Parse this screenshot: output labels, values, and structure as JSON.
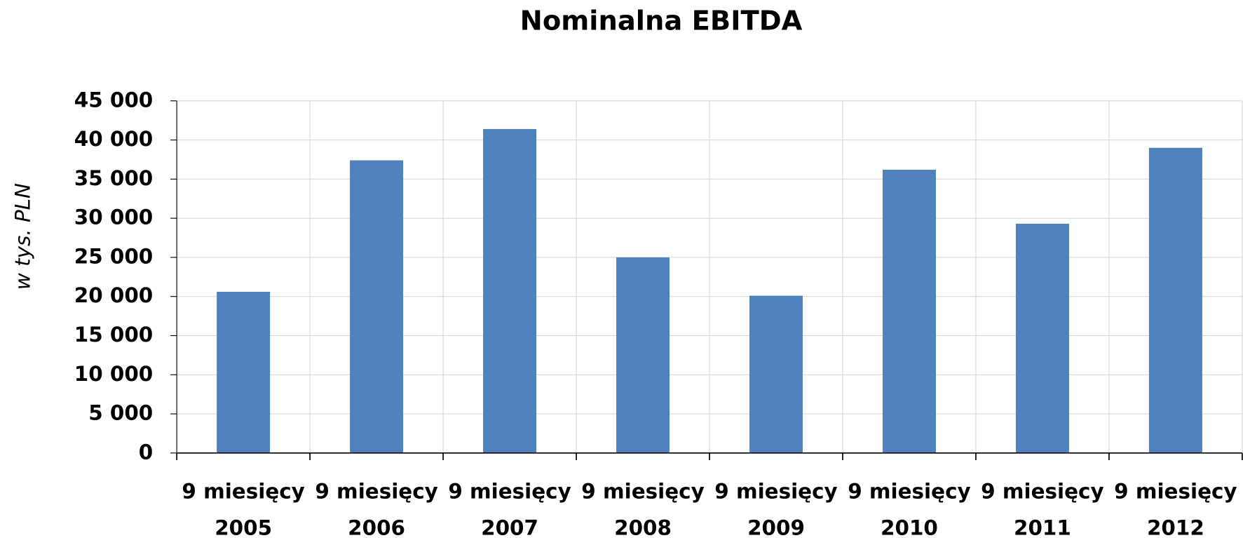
{
  "chart_data": {
    "type": "bar",
    "title": "Nominalna EBITDA",
    "y_label": "w tys. PLN",
    "categories": [
      "9 miesięcy 2005",
      "9 miesięcy 2006",
      "9 miesięcy 2007",
      "9 miesięcy 2008",
      "9 miesięcy 2009",
      "9 miesięcy 2010",
      "9 miesięcy 2011",
      "9 miesięcy 2012"
    ],
    "values": [
      20600,
      37400,
      41400,
      25000,
      20100,
      36200,
      29300,
      39000
    ],
    "color": "#4f81bd",
    "ylim": [
      0,
      45000
    ],
    "yticks": [
      0,
      {
        "value": 5000,
        "label": "5 000"
      },
      {
        "value": 10000,
        "label": "10 000"
      },
      {
        "value": 15000,
        "label": "15 000"
      },
      {
        "value": 20000,
        "label": "20 000"
      },
      {
        "value": 25000,
        "label": "25 000"
      },
      {
        "value": 30000,
        "label": "30 000"
      },
      {
        "value": 35000,
        "label": "35 000"
      },
      {
        "value": 40000,
        "label": "40 000"
      },
      {
        "value": 45000,
        "label": "45 000"
      }
    ],
    "grid": true
  }
}
